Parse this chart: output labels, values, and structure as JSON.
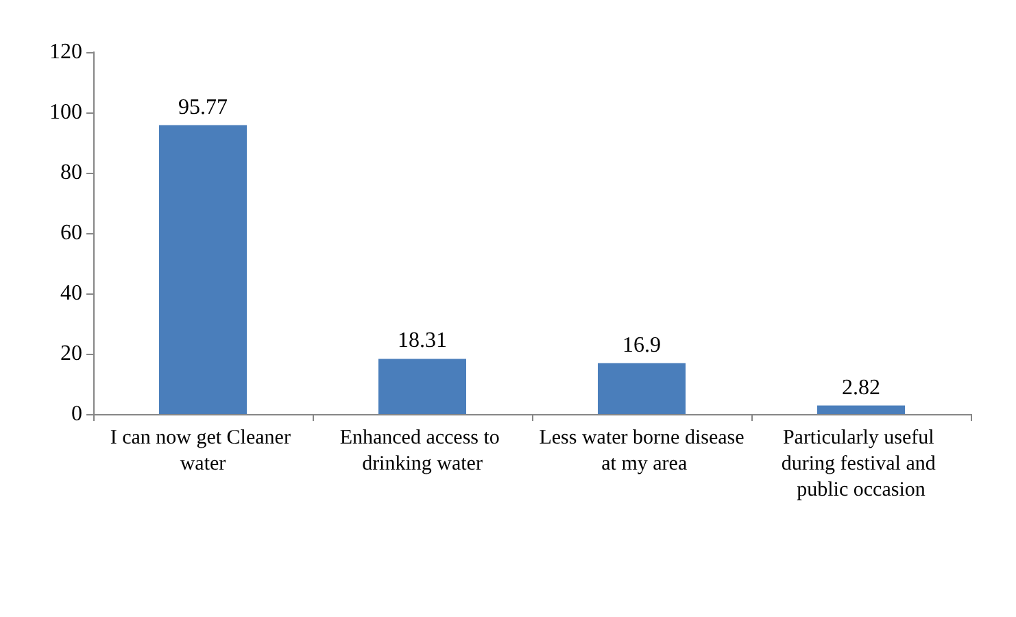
{
  "chart_data": {
    "type": "bar",
    "categories": [
      "I can now get Cleaner water",
      "Enhanced access to drinking water",
      "Less water borne disease at my area",
      "Particularly useful during festival and public occasion"
    ],
    "values": [
      95.77,
      18.31,
      16.9,
      2.82
    ],
    "color": "#4a7ebb",
    "ylim": [
      0,
      120
    ],
    "yticks": [
      0,
      20,
      40,
      60,
      80,
      100,
      120
    ],
    "data_labels": true,
    "grid": false
  }
}
